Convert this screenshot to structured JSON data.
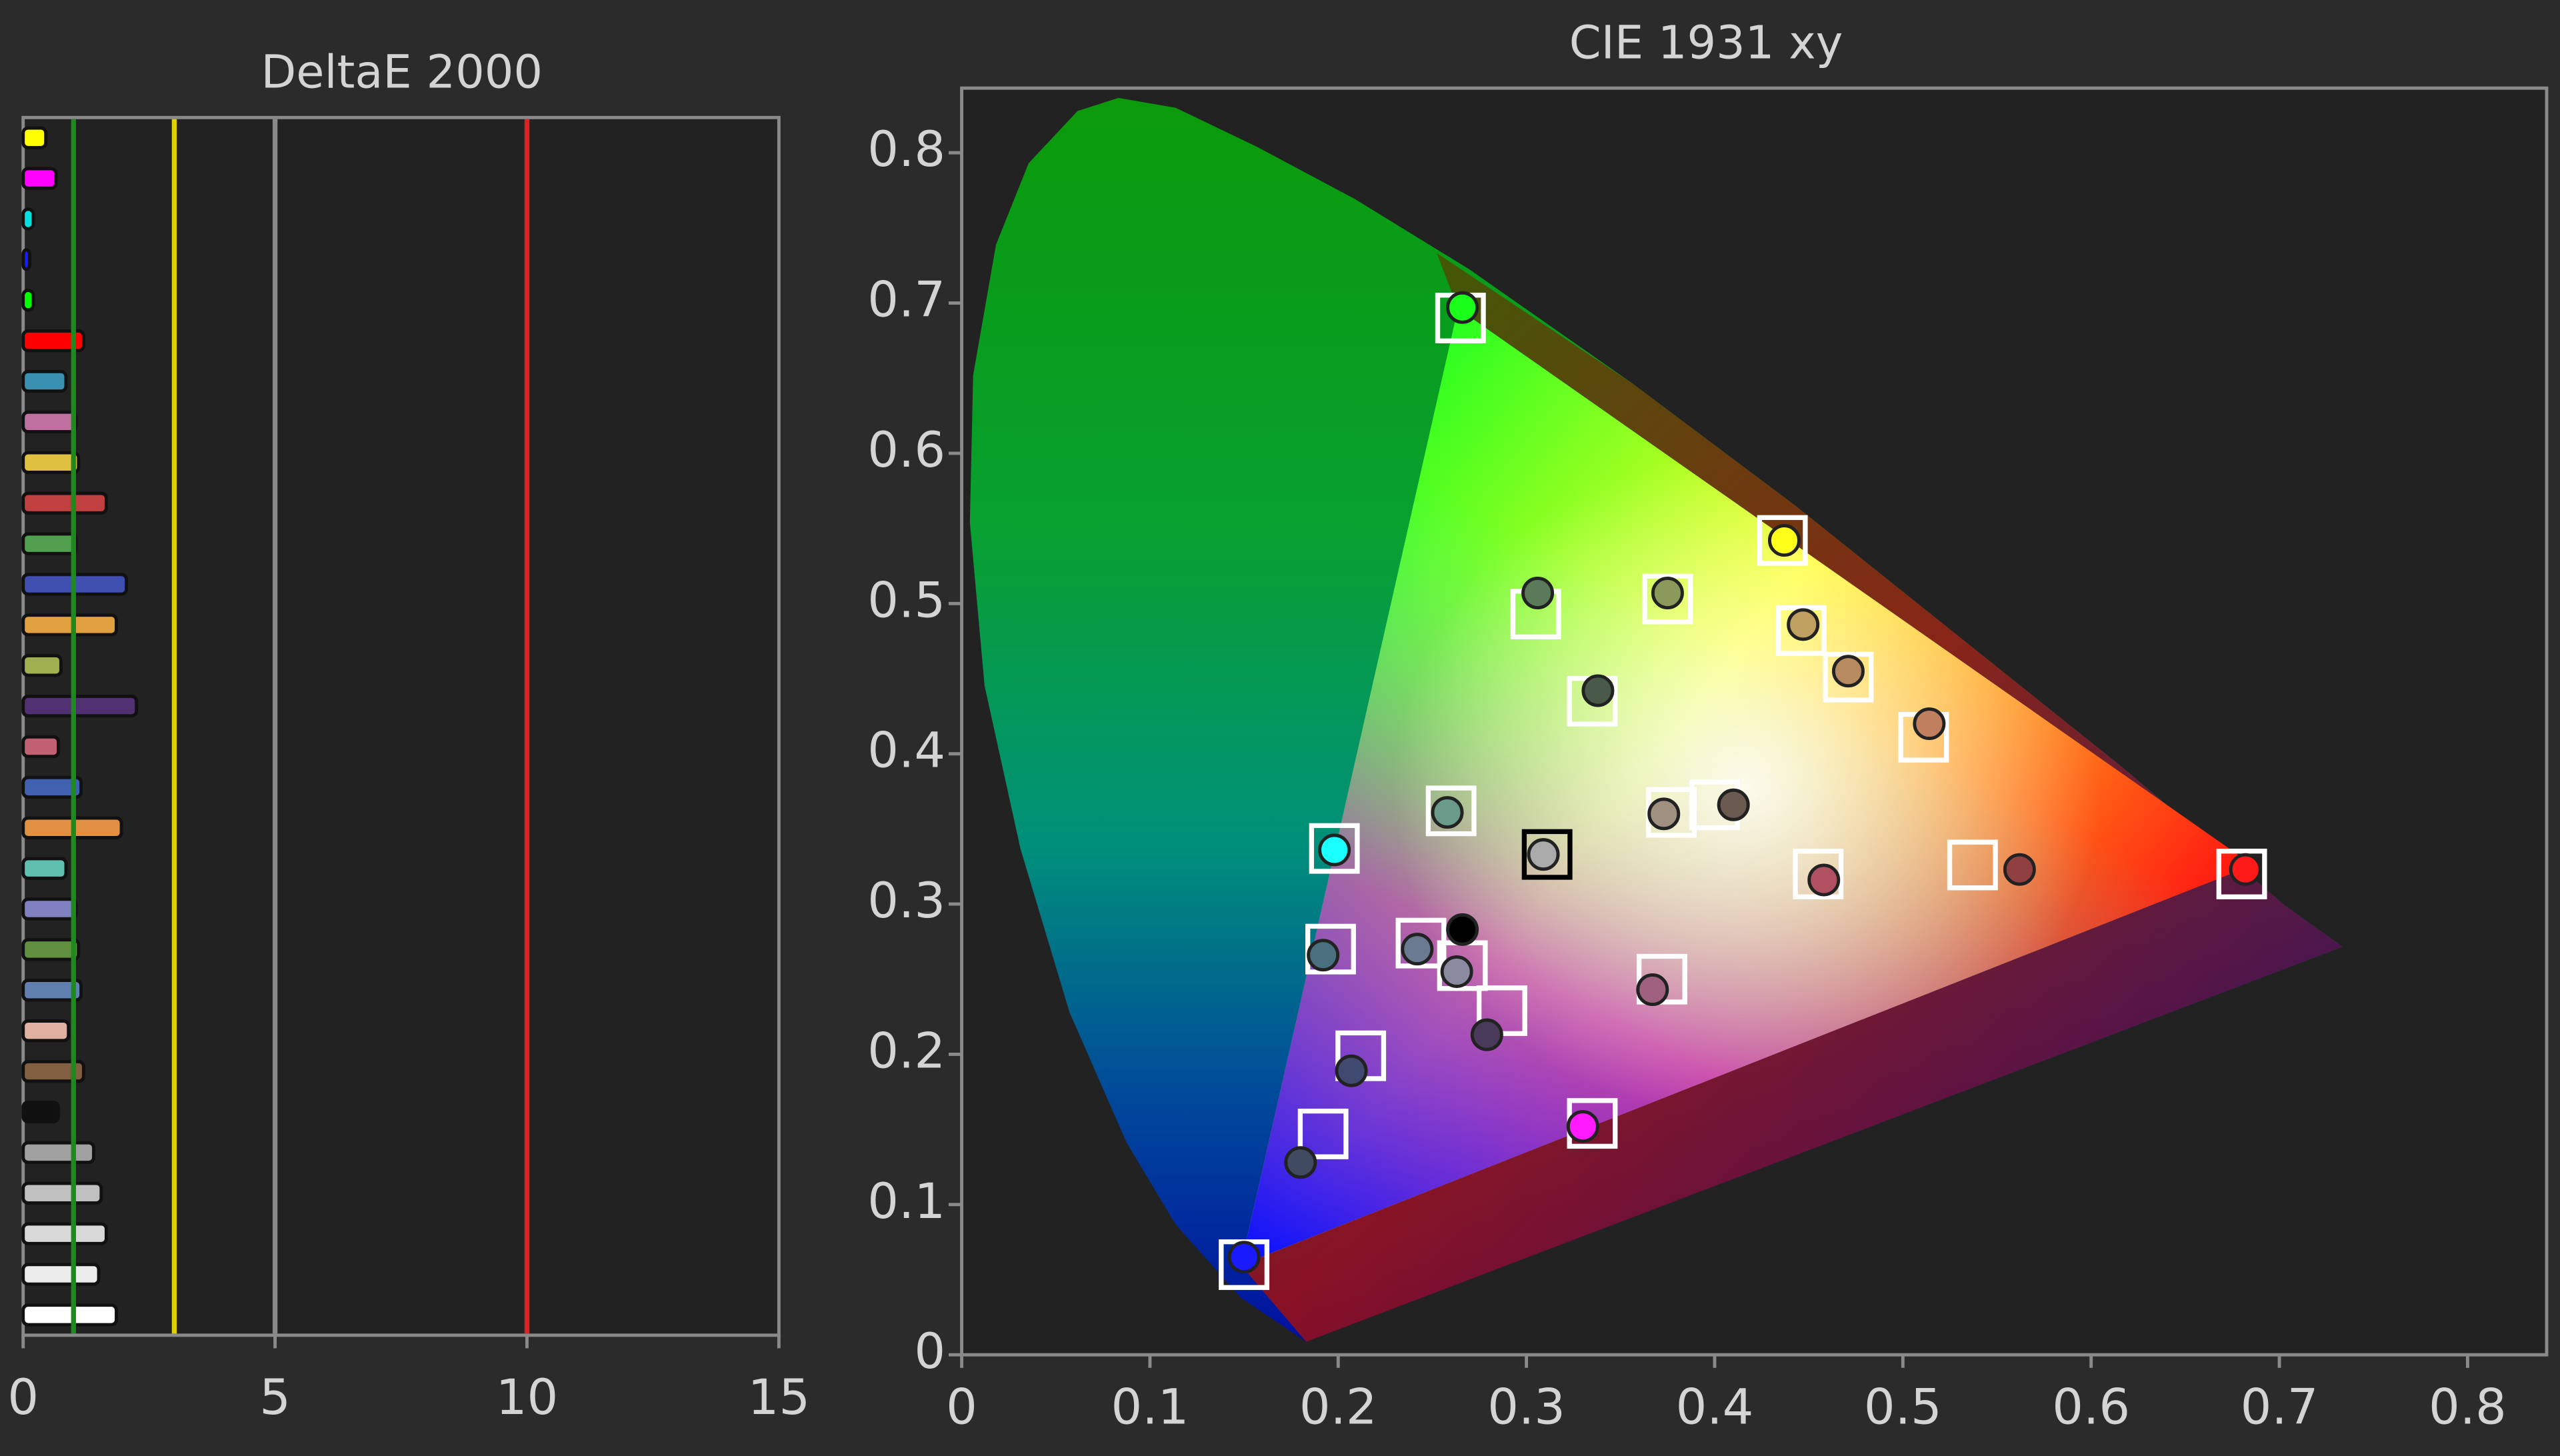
{
  "chart_data": [
    {
      "type": "bar",
      "orientation": "horizontal",
      "title": "DeltaE 2000",
      "categories": [
        null,
        null,
        null,
        null,
        null,
        null,
        null,
        null,
        null,
        null,
        null,
        null,
        null,
        null,
        null,
        null,
        null,
        null,
        null,
        null,
        null,
        null,
        null,
        null,
        null,
        null,
        null,
        null,
        null,
        null
      ],
      "values": [
        0.45,
        0.65,
        0.2,
        0.13,
        0.2,
        1.2,
        0.85,
        1.05,
        1.1,
        1.65,
        1.05,
        2.05,
        1.85,
        0.75,
        2.25,
        0.7,
        1.15,
        1.95,
        0.85,
        1.05,
        1.1,
        1.15,
        0.9,
        1.2,
        0.7,
        1.4,
        1.55,
        1.65,
        1.5,
        1.85
      ],
      "colors": [
        "#ffff00",
        "#ff00ff",
        "#00e0e0",
        "#1a1aff",
        "#00ff00",
        "#ff0000",
        "#3a90b0",
        "#c070a0",
        "#e0c040",
        "#c04040",
        "#50a050",
        "#4050b0",
        "#e0a040",
        "#a0b050",
        "#503070",
        "#c06070",
        "#4060b0",
        "#e09040",
        "#60c0b0",
        "#8080c0",
        "#609040",
        "#6080b0",
        "#e0b0a0",
        "#806040",
        "#101010",
        "#a0a0a0",
        "#c0c0c0",
        "#d8d8d8",
        "#ececec",
        "#ffffff"
      ],
      "xlim": [
        0,
        15
      ],
      "xticks": [
        0,
        5,
        10,
        15
      ],
      "reference_lines": [
        {
          "value": 1,
          "color": "#1e8a1e"
        },
        {
          "value": 3,
          "color": "#e0d000"
        },
        {
          "value": 5,
          "color": "#8a8a8a"
        },
        {
          "value": 10,
          "color": "#e02020"
        }
      ]
    },
    {
      "type": "scatter",
      "title": "CIE 1931 xy",
      "xlim": [
        0,
        0.842
      ],
      "ylim": [
        0,
        0.843
      ],
      "xticks": [
        0,
        0.1,
        0.2,
        0.3,
        0.4,
        0.5,
        0.6,
        0.7,
        0.8
      ],
      "yticks": [
        0,
        0.1,
        0.2,
        0.3,
        0.4,
        0.5,
        0.6,
        0.7,
        0.8
      ],
      "series": [
        {
          "marker": "square",
          "x": [
            0.265,
            0.68,
            0.15,
            0.436,
            0.198,
            0.311,
            0.305,
            0.375,
            0.446,
            0.471,
            0.511,
            0.335,
            0.26,
            0.377,
            0.4,
            0.455,
            0.537,
            0.196,
            0.244,
            0.266,
            0.287,
            0.372,
            0.212,
            0.192,
            0.335
          ],
          "values": [
            0.69,
            0.32,
            0.06,
            0.542,
            0.337,
            0.333,
            0.493,
            0.503,
            0.482,
            0.451,
            0.411,
            0.435,
            0.362,
            0.361,
            0.366,
            0.32,
            0.326,
            0.27,
            0.274,
            0.259,
            0.229,
            0.25,
            0.199,
            0.147,
            0.154
          ],
          "colors": [
            "#ffffff",
            "#ffffff",
            "#ffffff",
            "#ffffff",
            "#ffffff",
            "#000000",
            "#ffffff",
            "#ffffff",
            "#ffffff",
            "#ffffff",
            "#ffffff",
            "#ffffff",
            "#ffffff",
            "#ffffff",
            "#ffffff",
            "#ffffff",
            "#ffffff",
            "#ffffff",
            "#ffffff",
            "#ffffff",
            "#ffffff",
            "#ffffff",
            "#ffffff",
            "#ffffff",
            "#ffffff"
          ]
        },
        {
          "marker": "circle",
          "x": [
            0.266,
            0.682,
            0.15,
            0.437,
            0.198,
            0.309,
            0.306,
            0.375,
            0.447,
            0.471,
            0.514,
            0.338,
            0.258,
            0.373,
            0.41,
            0.458,
            0.562,
            0.192,
            0.242,
            0.263,
            0.266,
            0.279,
            0.367,
            0.207,
            0.18,
            0.33
          ],
          "values": [
            0.697,
            0.323,
            0.065,
            0.542,
            0.336,
            0.333,
            0.507,
            0.507,
            0.486,
            0.455,
            0.42,
            0.442,
            0.361,
            0.36,
            0.366,
            0.316,
            0.323,
            0.266,
            0.27,
            0.255,
            0.283,
            0.213,
            0.243,
            0.189,
            0.128,
            0.152
          ],
          "colors": [
            "#1aff1a",
            "#ff1a1a",
            "#1a1aff",
            "#ffff1a",
            "#1affff",
            "#aaaaaa",
            "#5a7a5a",
            "#8a9a5a",
            "#c0a060",
            "#b88a60",
            "#c08060",
            "#4a5a4a",
            "#6a9a8a",
            "#a09080",
            "#6a5a50",
            "#b05060",
            "#904040",
            "#4a7080",
            "#6a7a90",
            "#8a8aa0",
            "#000000",
            "#4a3a5a",
            "#a06080",
            "#404a70",
            "#404a60",
            "#ff1aff"
          ]
        }
      ]
    }
  ]
}
